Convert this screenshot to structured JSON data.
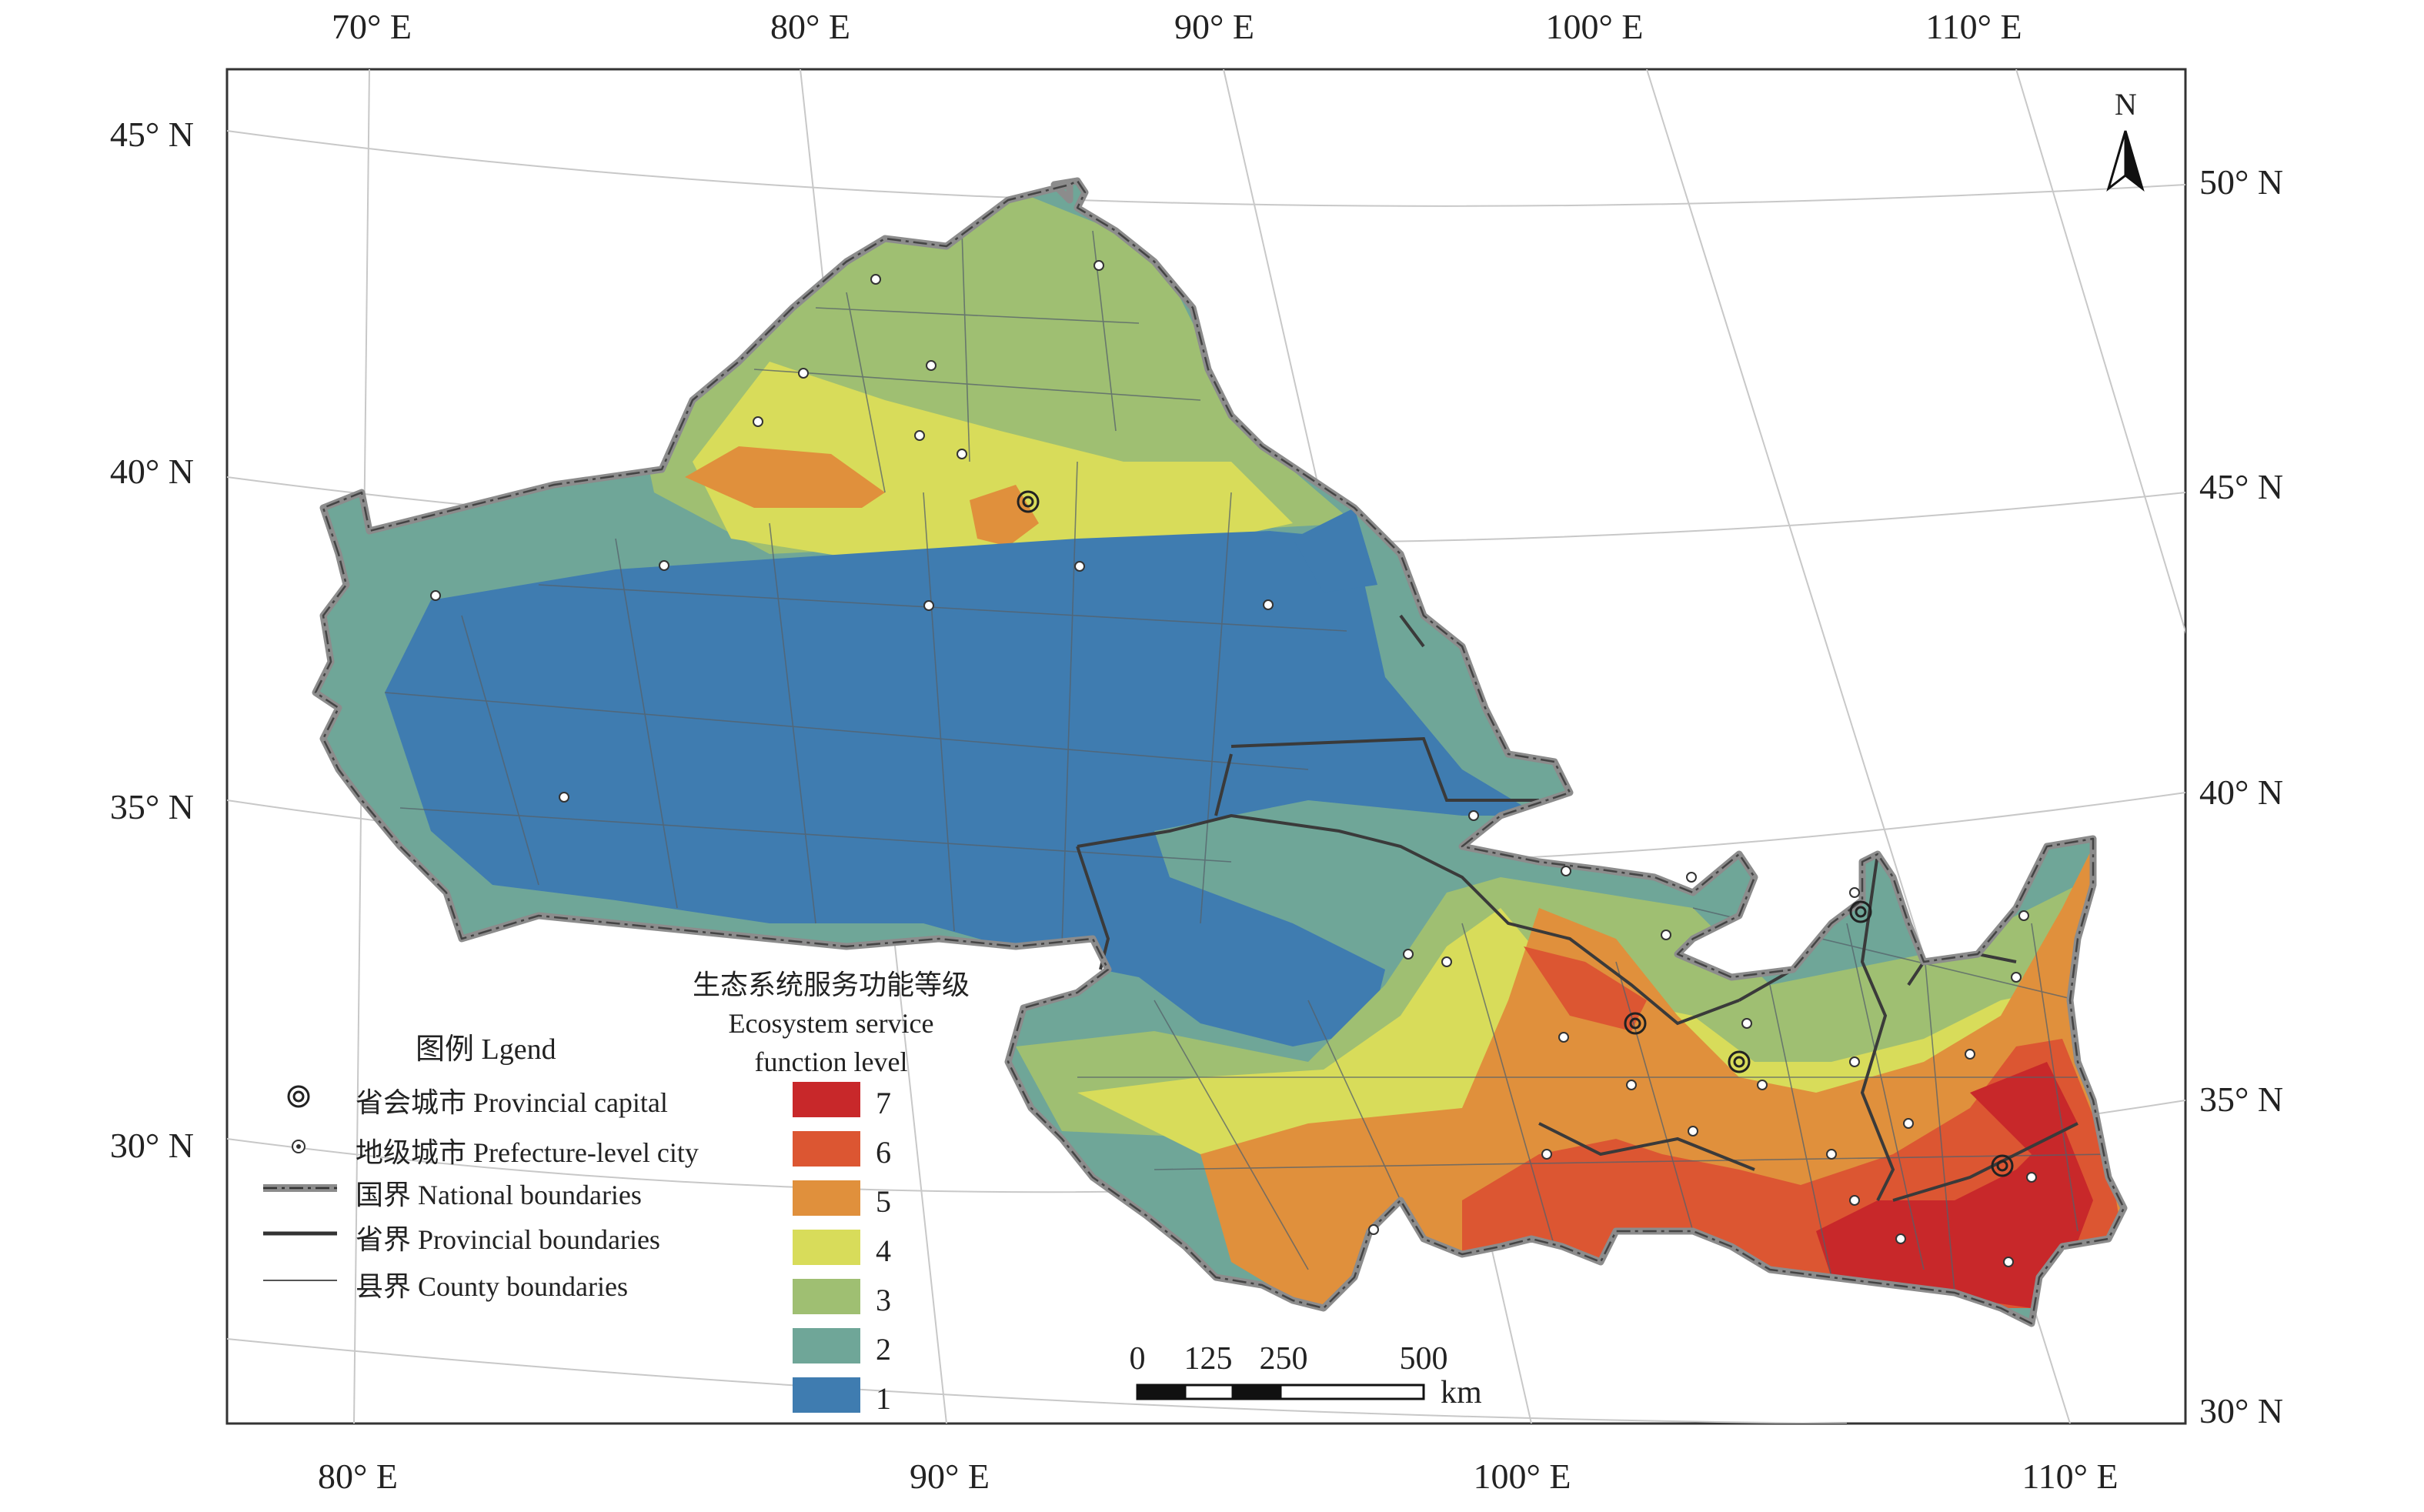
{
  "axes": {
    "top_labels": [
      "70° E",
      "80° E",
      "90° E",
      "100° E",
      "110° E"
    ],
    "bottom_labels": [
      "80° E",
      "90° E",
      "100° E",
      "110° E"
    ],
    "left_labels": [
      "45° N",
      "40° N",
      "35° N",
      "30° N"
    ],
    "right_labels": [
      "50° N",
      "45° N",
      "40° N",
      "35° N",
      "30° N"
    ]
  },
  "north_arrow": {
    "label": "N",
    "icon": "north-arrow-icon"
  },
  "legend": {
    "title": "图例 Lgend",
    "items": [
      {
        "symbol": "provincial-capital-icon",
        "label": "省会城市 Provincial capital"
      },
      {
        "symbol": "prefecture-city-icon",
        "label": "地级城市 Prefecture-level city"
      },
      {
        "symbol": "national-boundary-line",
        "label": "国界 National boundaries"
      },
      {
        "symbol": "provincial-boundary-line",
        "label": "省界 Provincial boundaries"
      },
      {
        "symbol": "county-boundary-line",
        "label": "县界 County boundaries"
      }
    ]
  },
  "levels": {
    "title_cn": "生态系统服务功能等级",
    "title_en_1": "Ecosystem service",
    "title_en_2": "function level",
    "classes": [
      {
        "level": "7",
        "color": "#c8282a"
      },
      {
        "level": "6",
        "color": "#dc5632"
      },
      {
        "level": "5",
        "color": "#e0903c"
      },
      {
        "level": "4",
        "color": "#d8dc5a"
      },
      {
        "level": "3",
        "color": "#9fbf72"
      },
      {
        "level": "2",
        "color": "#6fa698"
      },
      {
        "level": "1",
        "color": "#3f7cb0"
      }
    ]
  },
  "scale_bar": {
    "labels": [
      "0",
      "125",
      "250",
      "500"
    ],
    "unit": "km"
  }
}
